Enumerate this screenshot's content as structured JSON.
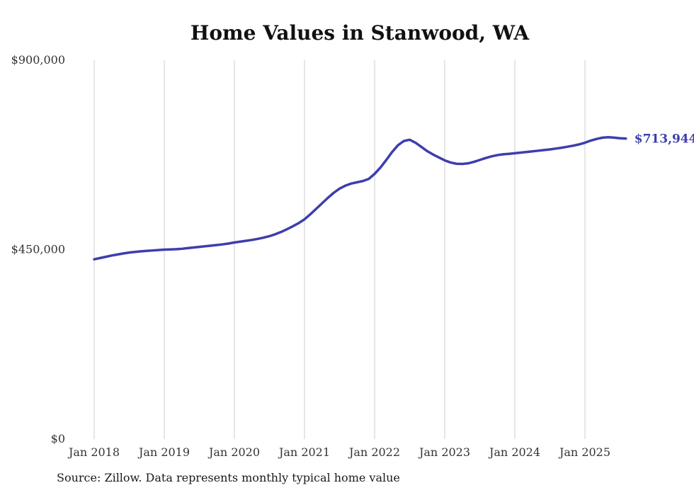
{
  "page": {
    "title": "Home Values in Stanwood, WA",
    "source_note": "Source: Zillow. Data represents monthly typical home value"
  },
  "colors": {
    "line": "#3d3dae",
    "grid": "#cccccc",
    "axis_text": "#333333",
    "title_text": "#111111",
    "source_text": "#1a1a1a",
    "background": "#ffffff"
  },
  "chart_data": {
    "type": "line",
    "title": "Home Values in Stanwood, WA",
    "xlabel": "",
    "ylabel": "",
    "ylim": [
      0,
      900000
    ],
    "grid": "vertical-only",
    "legend": "none",
    "x_start": "Jan 2018",
    "x_end": "Aug 2025",
    "points_per_year": 12,
    "x_tick_labels": [
      "Jan 2018",
      "Jan 2019",
      "Jan 2020",
      "Jan 2021",
      "Jan 2022",
      "Jan 2023",
      "Jan 2024",
      "Jan 2025"
    ],
    "y_ticks": [
      {
        "value": 900000,
        "label": "$900,000"
      },
      {
        "value": 450000,
        "label": "$450,000"
      },
      {
        "value": 0,
        "label": "$0"
      }
    ],
    "series": [
      {
        "name": "Monthly typical home value",
        "latest_value": 713944,
        "latest_label": "$713,944",
        "values": [
          427000,
          430000,
          433000,
          436000,
          438500,
          441000,
          443000,
          444500,
          446000,
          447000,
          448000,
          449000,
          450000,
          450500,
          451000,
          452000,
          453500,
          455000,
          456500,
          458000,
          459500,
          461000,
          462500,
          464500,
          467000,
          469000,
          471000,
          473000,
          475500,
          478500,
          482000,
          486500,
          492000,
          498500,
          505500,
          513000,
          522000,
          534000,
          547000,
          560000,
          573000,
          585000,
          595000,
          602000,
          607000,
          610000,
          613000,
          618000,
          630000,
          645000,
          663000,
          682000,
          698000,
          708000,
          711000,
          704000,
          694000,
          684000,
          676000,
          669000,
          662000,
          657000,
          654000,
          653500,
          655000,
          658500,
          663000,
          667500,
          671500,
          674500,
          676500,
          677500,
          679000,
          680500,
          682000,
          683500,
          685000,
          686500,
          688000,
          690000,
          692000,
          694500,
          697000,
          700000,
          704000,
          709000,
          713000,
          716000,
          717000,
          716000,
          714500,
          713944
        ]
      }
    ]
  }
}
